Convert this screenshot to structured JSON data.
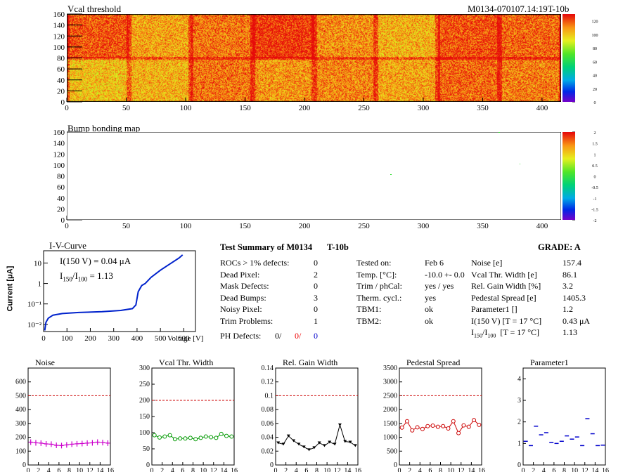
{
  "header": {
    "title": "Vcal threshold",
    "module_id": "M0134-070107.14:19T-10b"
  },
  "map1": {
    "title": "Vcal threshold",
    "xticks": [
      "0",
      "50",
      "100",
      "150",
      "200",
      "250",
      "300",
      "350",
      "400"
    ],
    "yticks": [
      "0",
      "20",
      "40",
      "60",
      "80",
      "100",
      "120",
      "140",
      "160"
    ],
    "zticks": [
      "0",
      "20",
      "40",
      "60",
      "80",
      "100",
      "120"
    ],
    "xlim": [
      0,
      416
    ],
    "ylim": [
      0,
      160
    ],
    "zlim": [
      0,
      130
    ]
  },
  "map2": {
    "title": "Bump bonding map",
    "xticks": [
      "0",
      "50",
      "100",
      "150",
      "200",
      "250",
      "300",
      "350",
      "400"
    ],
    "yticks": [
      "0",
      "20",
      "40",
      "60",
      "80",
      "100",
      "120",
      "140",
      "160"
    ],
    "zticks": [
      "-2",
      "-1.5",
      "-1",
      "-0.5",
      "0",
      "0.5",
      "1",
      "1.5",
      "2"
    ],
    "xlim": [
      0,
      416
    ],
    "ylim": [
      0,
      160
    ],
    "zlim": [
      -2,
      2
    ]
  },
  "iv": {
    "title": "I-V-Curve",
    "ylabel": "Current [μA]",
    "xlabel": "Voltage [V]",
    "annotation1": "I(150 V) = 0.04 μA",
    "annotation2_main": "I",
    "annotation2_sub1": "150",
    "annotation2_mid": "/I",
    "annotation2_sub2": "100",
    "annotation2_val": " =  1.13",
    "xticks": [
      "0",
      "100",
      "200",
      "300",
      "400",
      "500",
      "600"
    ],
    "yticks": [
      "10⁻²",
      "10⁻¹",
      "1",
      "10"
    ]
  },
  "summary": {
    "title": "Test Summary of M0134",
    "variant": "T-10b",
    "grade_label": "GRADE:  A",
    "left": [
      {
        "label": "ROCs > 1% defects:",
        "value": "0"
      },
      {
        "label": "Dead Pixel:",
        "value": "2"
      },
      {
        "label": "Mask Defects:",
        "value": "0"
      },
      {
        "label": "Dead Bumps:",
        "value": "3"
      },
      {
        "label": "Noisy Pixel:",
        "value": "0"
      },
      {
        "label": "Trim Problems:",
        "value": "1"
      }
    ],
    "ph_label": "PH Defects:",
    "ph_values": [
      "0/",
      "0/",
      "0"
    ],
    "middle": [
      {
        "label": "Tested on:",
        "value": "Feb 6"
      },
      {
        "label": "Temp. [°C]:",
        "value": "-10.0 +- 0.0"
      },
      {
        "label": "Trim / phCal:",
        "value": "yes / yes"
      },
      {
        "label": "Therm. cycl.:",
        "value": "yes"
      },
      {
        "label": "TBM1:",
        "value": "ok"
      },
      {
        "label": "TBM2:",
        "value": "ok"
      }
    ],
    "right": [
      {
        "label": "Noise [e]",
        "value": "157.4"
      },
      {
        "label": "Vcal Thr. Width [e]",
        "value": "86.1"
      },
      {
        "label": "Rel. Gain Width [%]",
        "value": "3.2"
      },
      {
        "label": "Pedestal Spread [e]",
        "value": "1405.3"
      },
      {
        "label": "Parameter1 []",
        "value": "1.2"
      },
      {
        "label": "I(150 V) [T = 17 °C]",
        "value": "0.43 μA"
      }
    ],
    "ratio_label_main": "I",
    "ratio_sub1": "150",
    "ratio_mid": "/I",
    "ratio_sub2": "100",
    "ratio_tail": "  [T = 17 °C]",
    "ratio_value": "1.13"
  },
  "colors": {
    "noise": "#cc00cc",
    "vcal": "#009900",
    "gain": "#000000",
    "pedestal": "#cc0000",
    "param1": "#0000cc",
    "limit": "#cc0000"
  },
  "chart_data": [
    {
      "type": "line",
      "title": "Noise",
      "x": [
        0,
        1,
        2,
        3,
        4,
        5,
        6,
        7,
        8,
        9,
        10,
        11,
        12,
        13,
        14,
        15
      ],
      "values": [
        165,
        160,
        158,
        152,
        150,
        142,
        140,
        145,
        150,
        153,
        155,
        158,
        160,
        165,
        162,
        158
      ],
      "xlim": [
        0,
        16
      ],
      "ylim": [
        0,
        700
      ],
      "yticks": [
        "0",
        "100",
        "200",
        "300",
        "400",
        "500",
        "600"
      ],
      "limit": 500,
      "xticks": [
        "0",
        "2",
        "4",
        "6",
        "8",
        "10",
        "12",
        "14",
        "16"
      ]
    },
    {
      "type": "line",
      "title": "Vcal Thr. Width",
      "x": [
        0,
        1,
        2,
        3,
        4,
        5,
        6,
        7,
        8,
        9,
        10,
        11,
        12,
        13,
        14,
        15
      ],
      "values": [
        92,
        85,
        88,
        92,
        80,
        82,
        82,
        84,
        80,
        84,
        88,
        86,
        84,
        96,
        90,
        88
      ],
      "xlim": [
        0,
        16
      ],
      "ylim": [
        0,
        300
      ],
      "yticks": [
        "0",
        "50",
        "100",
        "150",
        "200",
        "250",
        "300"
      ],
      "limit": 200,
      "xticks": [
        "0",
        "2",
        "4",
        "6",
        "8",
        "10",
        "12",
        "14",
        "16"
      ]
    },
    {
      "type": "line",
      "title": "Rel. Gain Width",
      "x": [
        0,
        1,
        2,
        3,
        4,
        5,
        6,
        7,
        8,
        9,
        10,
        11,
        12,
        13,
        14,
        15
      ],
      "values": [
        0.032,
        0.03,
        0.042,
        0.035,
        0.03,
        0.026,
        0.022,
        0.025,
        0.032,
        0.028,
        0.033,
        0.03,
        0.058,
        0.034,
        0.033,
        0.028
      ],
      "xlim": [
        0,
        16
      ],
      "ylim": [
        0,
        0.14
      ],
      "yticks": [
        "0",
        "0.02",
        "0.04",
        "0.06",
        "0.08",
        "0.1",
        "0.12",
        "0.14"
      ],
      "limit": 0.1,
      "xticks": [
        "0",
        "2",
        "4",
        "6",
        "8",
        "10",
        "12",
        "14",
        "16"
      ]
    },
    {
      "type": "line",
      "title": "Pedestal Spread",
      "x": [
        0,
        1,
        2,
        3,
        4,
        5,
        6,
        7,
        8,
        9,
        10,
        11,
        12,
        13,
        14,
        15
      ],
      "values": [
        1350,
        1580,
        1250,
        1360,
        1300,
        1400,
        1420,
        1380,
        1400,
        1320,
        1580,
        1150,
        1430,
        1380,
        1620,
        1450
      ],
      "xlim": [
        0,
        16
      ],
      "ylim": [
        0,
        3500
      ],
      "yticks": [
        "0",
        "500",
        "1000",
        "1500",
        "2000",
        "2500",
        "3000",
        "3500"
      ],
      "limit": 2500,
      "xticks": [
        "0",
        "2",
        "4",
        "6",
        "8",
        "10",
        "12",
        "14",
        "16"
      ]
    },
    {
      "type": "scatter",
      "title": "Parameter1",
      "x": [
        0,
        1,
        2,
        3,
        4,
        5,
        6,
        7,
        8,
        9,
        10,
        11,
        12,
        13,
        14,
        15
      ],
      "values": [
        1.1,
        0.9,
        1.8,
        1.4,
        1.5,
        1.05,
        1.0,
        1.1,
        1.35,
        1.2,
        1.3,
        0.9,
        2.15,
        1.45,
        0.9,
        0.92
      ],
      "xlim": [
        0,
        16
      ],
      "ylim": [
        0,
        4.5
      ],
      "yticks": [
        "0",
        "1",
        "2",
        "3",
        "4"
      ],
      "xticks": [
        "0",
        "2",
        "4",
        "6",
        "8",
        "10",
        "12",
        "14",
        "16"
      ]
    }
  ]
}
